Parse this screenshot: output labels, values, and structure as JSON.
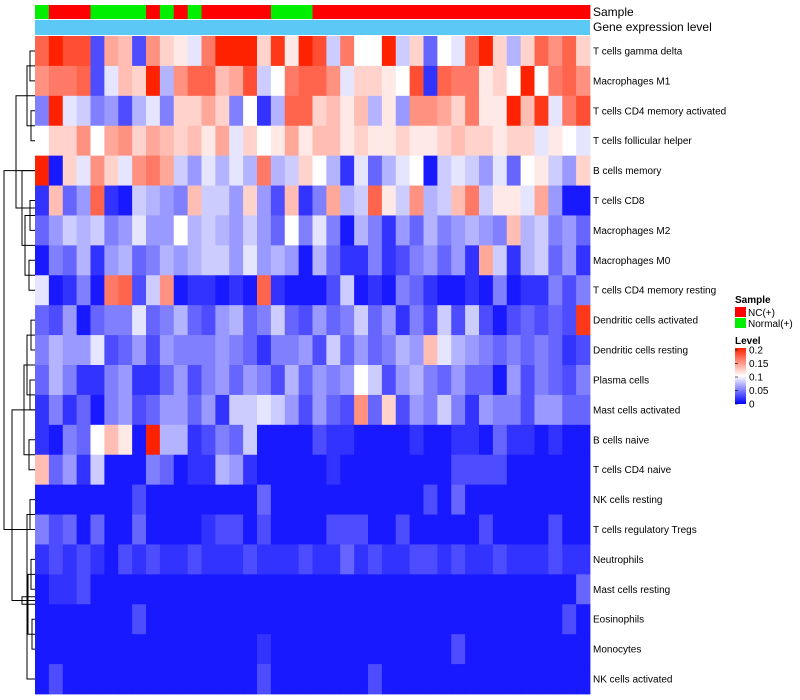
{
  "chart_data": {
    "type": "heatmap",
    "rows": [
      "T cells gamma delta",
      "Macrophages M1",
      "T cells CD4 memory activated",
      "T cells follicular helper",
      "B cells memory",
      "T cells CD8",
      "Macrophages M2",
      "Macrophages M0",
      "T cells CD4 memory resting",
      "Dendritic cells activated",
      "Dendritic cells resting",
      "Plasma cells",
      "Mast cells activated",
      "B cells naive",
      "T cells CD4 naive",
      "NK cells resting",
      "T cells regulatory  Tregs",
      "Neutrophils",
      "Mast cells resting",
      "Eosinophils",
      "Monocytes",
      "NK cells activated"
    ],
    "n_samples": 40,
    "sample_groups": [
      "N",
      "T",
      "T",
      "T",
      "N",
      "N",
      "N",
      "N",
      "T",
      "N",
      "T",
      "N",
      "T",
      "T",
      "T",
      "T",
      "T",
      "N",
      "N",
      "N",
      "T",
      "T",
      "T",
      "T",
      "T",
      "T",
      "T",
      "T",
      "T",
      "T",
      "T",
      "T",
      "T",
      "T",
      "T",
      "T",
      "T",
      "T",
      "T",
      "T"
    ],
    "annotations": {
      "sample_label": "Sample",
      "gene_expression_label": "Gene expression level",
      "gene_expression_color": "#5bc8f5"
    },
    "legend": {
      "sample": {
        "title": "Sample",
        "items": [
          {
            "label": "NC(+)",
            "color": "#ff0000"
          },
          {
            "label": "Normal(+)",
            "color": "#00ee00"
          }
        ]
      },
      "level": {
        "title": "Level",
        "ticks": [
          "0.2",
          "0.15",
          "0.1",
          "0.05",
          "0"
        ],
        "colors": {
          "low": "#0000ff",
          "mid": "#ffffff",
          "high": "#ff2200"
        }
      }
    },
    "scale": {
      "min": 0,
      "max": 0.2
    },
    "values": [
      [
        0.17,
        0.2,
        0.18,
        0.18,
        0.03,
        0.14,
        0.13,
        0.03,
        0.15,
        0.12,
        0.11,
        0.09,
        0.16,
        0.2,
        0.2,
        0.2,
        0.12,
        0.19,
        0.11,
        0.2,
        0.18,
        0.08,
        0.16,
        0.1,
        0.1,
        0.2,
        0.08,
        0.12,
        0.04,
        0.1,
        0.09,
        0.17,
        0.2,
        0.12,
        0.07,
        0.12,
        0.17,
        0.15,
        0.17,
        0.12
      ],
      [
        0.15,
        0.16,
        0.16,
        0.17,
        0.03,
        0.09,
        0.13,
        0.12,
        0.2,
        0.07,
        0.15,
        0.17,
        0.17,
        0.13,
        0.14,
        0.18,
        0.08,
        0.1,
        0.16,
        0.17,
        0.17,
        0.15,
        0.09,
        0.12,
        0.12,
        0.11,
        0.1,
        0.18,
        0.02,
        0.17,
        0.16,
        0.16,
        0.11,
        0.12,
        0.1,
        0.2,
        0.1,
        0.16,
        0.17,
        0.15
      ],
      [
        0.05,
        0.2,
        0.09,
        0.08,
        0.05,
        0.06,
        0.03,
        0.07,
        0.09,
        0.05,
        0.12,
        0.12,
        0.14,
        0.12,
        0.05,
        0.1,
        0.02,
        0.07,
        0.17,
        0.17,
        0.12,
        0.13,
        0.11,
        0.13,
        0.07,
        0.11,
        0.06,
        0.15,
        0.15,
        0.14,
        0.12,
        0.16,
        0.11,
        0.11,
        0.2,
        0.13,
        0.19,
        0.09,
        0.16,
        0.18
      ],
      [
        0.1,
        0.12,
        0.12,
        0.15,
        0.1,
        0.14,
        0.15,
        0.12,
        0.14,
        0.13,
        0.12,
        0.13,
        0.11,
        0.14,
        0.09,
        0.12,
        0.1,
        0.11,
        0.14,
        0.11,
        0.13,
        0.13,
        0.11,
        0.12,
        0.11,
        0.11,
        0.12,
        0.11,
        0.11,
        0.12,
        0.13,
        0.12,
        0.12,
        0.11,
        0.12,
        0.12,
        0.09,
        0.11,
        0.1,
        0.09
      ],
      [
        0.2,
        0.01,
        0.12,
        0.09,
        0.15,
        0.12,
        0.09,
        0.15,
        0.16,
        0.14,
        0.08,
        0.06,
        0.09,
        0.07,
        0.09,
        0.07,
        0.16,
        0.07,
        0.08,
        0.12,
        0.1,
        0.07,
        0.02,
        0.09,
        0.04,
        0.07,
        0.09,
        0.1,
        0.01,
        0.08,
        0.09,
        0.08,
        0.06,
        0.09,
        0.04,
        0.1,
        0.11,
        0.08,
        0.06,
        0.12
      ],
      [
        0.02,
        0.13,
        0.04,
        0.06,
        0.17,
        0.02,
        0.01,
        0.08,
        0.07,
        0.06,
        0.05,
        0.13,
        0.08,
        0.08,
        0.06,
        0.12,
        0.06,
        0.03,
        0.13,
        0.02,
        0.05,
        0.14,
        0.07,
        0.08,
        0.17,
        0.11,
        0.08,
        0.15,
        0.07,
        0.08,
        0.13,
        0.16,
        0.08,
        0.11,
        0.11,
        0.09,
        0.14,
        0.06,
        0.01,
        0.01
      ],
      [
        0.04,
        0.06,
        0.08,
        0.07,
        0.08,
        0.05,
        0.06,
        0.09,
        0.06,
        0.06,
        0.1,
        0.07,
        0.08,
        0.07,
        0.06,
        0.08,
        0.06,
        0.04,
        0.1,
        0.05,
        0.09,
        0.05,
        0.01,
        0.07,
        0.05,
        0.02,
        0.06,
        0.04,
        0.07,
        0.05,
        0.06,
        0.07,
        0.06,
        0.05,
        0.13,
        0.07,
        0.08,
        0.05,
        0.06,
        0.04
      ],
      [
        0.01,
        0.05,
        0.04,
        0.07,
        0.02,
        0.06,
        0.07,
        0.04,
        0.05,
        0.07,
        0.06,
        0.07,
        0.08,
        0.08,
        0.06,
        0.09,
        0.06,
        0.07,
        0.06,
        0.01,
        0.07,
        0.04,
        0.02,
        0.02,
        0.05,
        0.02,
        0.03,
        0.05,
        0.06,
        0.04,
        0.06,
        0.02,
        0.14,
        0.08,
        0.02,
        0.07,
        0.08,
        0.04,
        0.06,
        0.02
      ],
      [
        0.09,
        0.01,
        0.02,
        0.05,
        0.01,
        0.16,
        0.17,
        0.03,
        0.08,
        0.15,
        0.01,
        0.02,
        0.02,
        0.01,
        0.02,
        0.01,
        0.17,
        0.02,
        0.01,
        0.01,
        0.01,
        0.03,
        0.08,
        0.01,
        0.02,
        0.01,
        0.05,
        0.04,
        0.02,
        0.01,
        0.01,
        0.02,
        0.01,
        0.05,
        0.01,
        0.02,
        0.02,
        0.05,
        0.03,
        0.05
      ],
      [
        0.04,
        0.03,
        0.06,
        0.01,
        0.04,
        0.05,
        0.05,
        0.09,
        0.04,
        0.05,
        0.07,
        0.04,
        0.03,
        0.06,
        0.07,
        0.04,
        0.05,
        0.08,
        0.04,
        0.03,
        0.06,
        0.04,
        0.05,
        0.08,
        0.04,
        0.06,
        0.02,
        0.05,
        0.03,
        0.08,
        0.03,
        0.08,
        0.03,
        0.01,
        0.03,
        0.04,
        0.03,
        0.04,
        0.03,
        0.19
      ],
      [
        0.05,
        0.07,
        0.06,
        0.06,
        0.09,
        0.03,
        0.04,
        0.06,
        0.03,
        0.06,
        0.05,
        0.05,
        0.05,
        0.06,
        0.05,
        0.04,
        0.02,
        0.05,
        0.05,
        0.06,
        0.03,
        0.08,
        0.04,
        0.06,
        0.04,
        0.05,
        0.07,
        0.06,
        0.13,
        0.09,
        0.07,
        0.06,
        0.05,
        0.04,
        0.05,
        0.04,
        0.05,
        0.04,
        0.02,
        0.03
      ],
      [
        0.04,
        0.07,
        0.05,
        0.02,
        0.02,
        0.05,
        0.06,
        0.02,
        0.02,
        0.04,
        0.06,
        0.03,
        0.05,
        0.06,
        0.04,
        0.06,
        0.05,
        0.03,
        0.07,
        0.04,
        0.06,
        0.05,
        0.06,
        0.1,
        0.08,
        0.03,
        0.06,
        0.07,
        0.05,
        0.04,
        0.06,
        0.04,
        0.04,
        0.01,
        0.06,
        0.03,
        0.05,
        0.04,
        0.03,
        0.05
      ],
      [
        0.02,
        0.05,
        0.02,
        0.04,
        0.01,
        0.05,
        0.06,
        0.03,
        0.04,
        0.06,
        0.06,
        0.04,
        0.06,
        0.02,
        0.08,
        0.08,
        0.09,
        0.08,
        0.06,
        0.03,
        0.06,
        0.04,
        0.03,
        0.15,
        0.04,
        0.12,
        0.03,
        0.06,
        0.05,
        0.08,
        0.05,
        0.02,
        0.06,
        0.05,
        0.05,
        0.03,
        0.06,
        0.06,
        0.04,
        0.04
      ],
      [
        0.02,
        0.01,
        0.05,
        0.04,
        0.1,
        0.13,
        0.11,
        0.01,
        0.2,
        0.07,
        0.07,
        0.02,
        0.03,
        0.05,
        0.04,
        0.08,
        0.01,
        0.01,
        0.01,
        0.01,
        0.03,
        0.02,
        0.02,
        0.01,
        0.01,
        0.01,
        0.01,
        0.02,
        0.01,
        0.01,
        0.02,
        0.02,
        0.01,
        0.04,
        0.02,
        0.02,
        0.01,
        0.02,
        0.01,
        0.01
      ],
      [
        0.13,
        0.04,
        0.06,
        0.02,
        0.08,
        0.01,
        0.01,
        0.01,
        0.05,
        0.04,
        0.01,
        0.02,
        0.02,
        0.07,
        0.06,
        0.02,
        0.01,
        0.01,
        0.01,
        0.01,
        0.01,
        0.02,
        0.01,
        0.01,
        0.01,
        0.01,
        0.01,
        0.01,
        0.01,
        0.01,
        0.03,
        0.03,
        0.03,
        0.03,
        0.01,
        0.01,
        0.01,
        0.01,
        0.01,
        0.01
      ],
      [
        0.01,
        0.01,
        0.01,
        0.01,
        0.01,
        0.01,
        0.01,
        0.03,
        0.01,
        0.01,
        0.01,
        0.01,
        0.01,
        0.01,
        0.01,
        0.01,
        0.04,
        0.01,
        0.01,
        0.01,
        0.01,
        0.01,
        0.01,
        0.01,
        0.01,
        0.01,
        0.01,
        0.01,
        0.03,
        0.01,
        0.04,
        0.01,
        0.01,
        0.01,
        0.01,
        0.01,
        0.01,
        0.01,
        0.01,
        0.01
      ],
      [
        0.05,
        0.03,
        0.04,
        0.01,
        0.04,
        0.01,
        0.01,
        0.04,
        0.01,
        0.01,
        0.01,
        0.01,
        0.02,
        0.03,
        0.03,
        0.01,
        0.03,
        0.01,
        0.01,
        0.01,
        0.01,
        0.03,
        0.03,
        0.03,
        0.01,
        0.01,
        0.03,
        0.01,
        0.01,
        0.01,
        0.01,
        0.01,
        0.03,
        0.01,
        0.01,
        0.01,
        0.01,
        0.03,
        0.01,
        0.01
      ],
      [
        0.02,
        0.03,
        0.02,
        0.03,
        0.02,
        0.01,
        0.03,
        0.02,
        0.03,
        0.02,
        0.02,
        0.03,
        0.02,
        0.02,
        0.02,
        0.03,
        0.02,
        0.02,
        0.02,
        0.03,
        0.02,
        0.02,
        0.04,
        0.02,
        0.03,
        0.02,
        0.02,
        0.03,
        0.03,
        0.02,
        0.03,
        0.02,
        0.02,
        0.03,
        0.02,
        0.02,
        0.02,
        0.03,
        0.02,
        0.02
      ],
      [
        0.01,
        0.02,
        0.02,
        0.03,
        0.01,
        0.01,
        0.01,
        0.01,
        0.01,
        0.01,
        0.01,
        0.01,
        0.01,
        0.01,
        0.01,
        0.01,
        0.01,
        0.01,
        0.01,
        0.01,
        0.01,
        0.01,
        0.01,
        0.01,
        0.01,
        0.01,
        0.01,
        0.01,
        0.01,
        0.01,
        0.01,
        0.01,
        0.01,
        0.01,
        0.01,
        0.01,
        0.01,
        0.01,
        0.01,
        0.04
      ],
      [
        0.01,
        0.01,
        0.01,
        0.01,
        0.01,
        0.01,
        0.01,
        0.03,
        0.01,
        0.01,
        0.01,
        0.01,
        0.01,
        0.01,
        0.01,
        0.01,
        0.01,
        0.01,
        0.01,
        0.01,
        0.01,
        0.01,
        0.01,
        0.01,
        0.01,
        0.01,
        0.01,
        0.01,
        0.01,
        0.01,
        0.01,
        0.01,
        0.01,
        0.01,
        0.01,
        0.01,
        0.01,
        0.01,
        0.03,
        0.01
      ],
      [
        0.01,
        0.01,
        0.01,
        0.01,
        0.01,
        0.01,
        0.01,
        0.01,
        0.01,
        0.01,
        0.01,
        0.01,
        0.01,
        0.01,
        0.01,
        0.01,
        0.02,
        0.01,
        0.01,
        0.01,
        0.01,
        0.01,
        0.01,
        0.01,
        0.01,
        0.01,
        0.01,
        0.01,
        0.01,
        0.01,
        0.03,
        0.01,
        0.01,
        0.01,
        0.01,
        0.01,
        0.01,
        0.01,
        0.01,
        0.01
      ],
      [
        0.01,
        0.03,
        0.01,
        0.01,
        0.01,
        0.01,
        0.01,
        0.01,
        0.01,
        0.01,
        0.01,
        0.01,
        0.01,
        0.01,
        0.01,
        0.01,
        0.03,
        0.01,
        0.01,
        0.01,
        0.01,
        0.01,
        0.01,
        0.01,
        0.03,
        0.01,
        0.01,
        0.01,
        0.01,
        0.01,
        0.01,
        0.01,
        0.01,
        0.01,
        0.01,
        0.01,
        0.01,
        0.01,
        0.01,
        0.01
      ]
    ]
  }
}
